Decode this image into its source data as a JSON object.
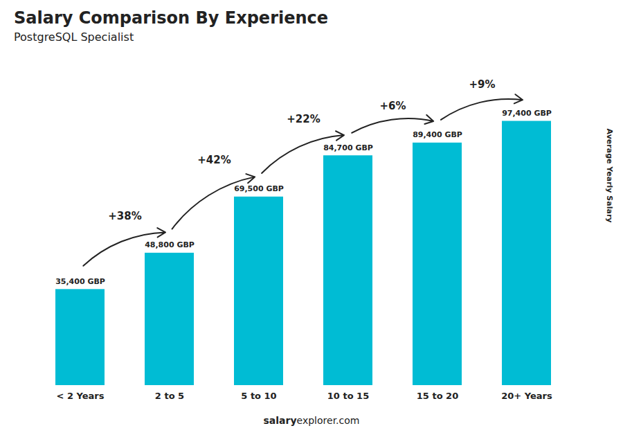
{
  "chart_data": {
    "type": "bar",
    "title": "Salary Comparison By Experience",
    "subtitle": "PostgreSQL Specialist",
    "ylabel": "Average Yearly Salary",
    "categories": [
      "< 2 Years",
      "2 to 5",
      "5 to 10",
      "10 to 15",
      "15 to 20",
      "20+ Years"
    ],
    "values": [
      35400,
      48800,
      69500,
      84700,
      89400,
      97400
    ],
    "value_labels": [
      "35,400 GBP",
      "48,800 GBP",
      "69,500 GBP",
      "84,700 GBP",
      "89,400 GBP",
      "97,400 GBP"
    ],
    "data_labels": true,
    "annotations": [
      "+38%",
      "+42%",
      "+22%",
      "+6%",
      "+9%"
    ],
    "footer_bold": "salary",
    "footer_plain": "explorer.com",
    "color": "#00bcd4",
    "ylim": [
      0,
      120000
    ],
    "grid": false,
    "tick_labels": "x"
  }
}
